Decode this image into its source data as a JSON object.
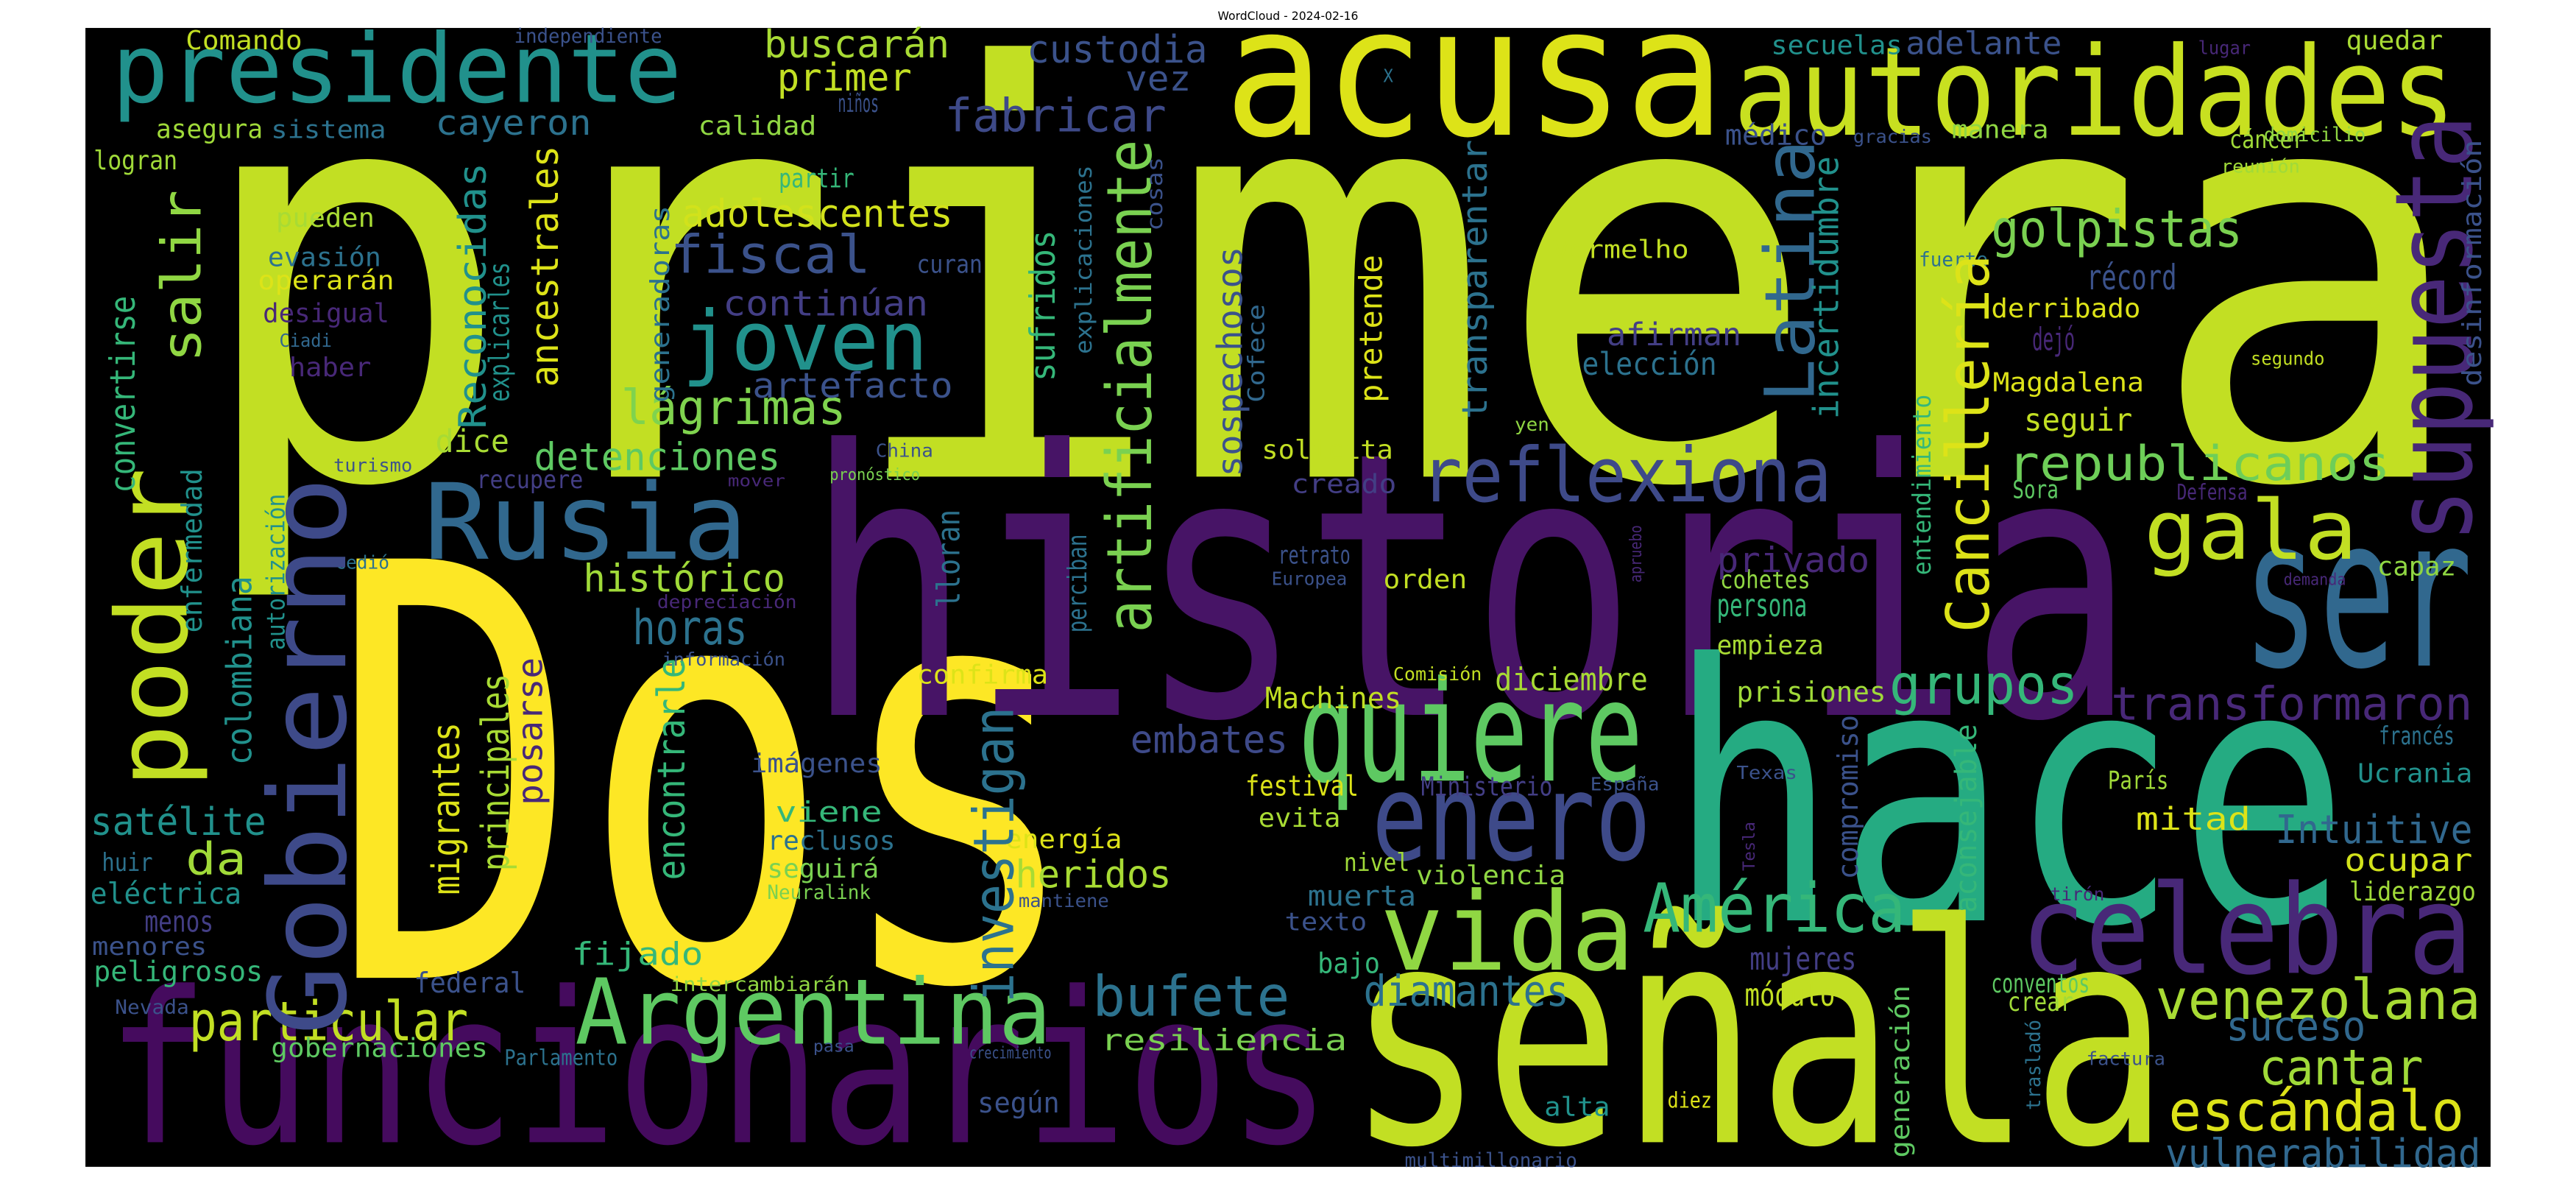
{
  "chart_data": {
    "type": "wordcloud",
    "title": "WordCloud - 2024-02-16",
    "background": "#000000",
    "words": [
      {
        "text": "primera",
        "color": "#c2df23"
      },
      {
        "text": "Dos",
        "color": "#fde725"
      },
      {
        "text": "historia",
        "color": "#471466"
      },
      {
        "text": "hace",
        "color": "#25ab82"
      },
      {
        "text": "señala",
        "color": "#c2df23"
      },
      {
        "text": "funcionarios",
        "color": "#450b5e"
      },
      {
        "text": "acusa",
        "color": "#dde318"
      },
      {
        "text": "autoridades",
        "color": "#c8e020"
      },
      {
        "text": "presidente",
        "color": "#21918c"
      },
      {
        "text": "ser",
        "color": "#31688e"
      },
      {
        "text": "quiere",
        "color": "#5ec962"
      },
      {
        "text": "enero",
        "color": "#3e4a89"
      },
      {
        "text": "vida",
        "color": "#90d743"
      },
      {
        "text": "celebra",
        "color": "#482878"
      },
      {
        "text": "Argentina",
        "color": "#5ec962"
      },
      {
        "text": "Rusia",
        "color": "#31688e"
      },
      {
        "text": "reflexiona",
        "color": "#3e4a89"
      },
      {
        "text": "gala",
        "color": "#c2df23"
      },
      {
        "text": "joven",
        "color": "#21918c"
      },
      {
        "text": "fiscal",
        "color": "#3b528b"
      },
      {
        "text": "América",
        "color": "#35b779"
      },
      {
        "text": "venezolana",
        "color": "#a8db34"
      },
      {
        "text": "escándalo",
        "color": "#dde318"
      },
      {
        "text": "cantar",
        "color": "#a0da39"
      },
      {
        "text": "suceso",
        "color": "#31688e"
      },
      {
        "text": "vulnerabilidad",
        "color": "#31688e"
      },
      {
        "text": "particular",
        "color": "#c2df23"
      },
      {
        "text": "bufete",
        "color": "#2c728e"
      },
      {
        "text": "diamantes",
        "color": "#2c728e"
      },
      {
        "text": "horas",
        "color": "#2c728e"
      },
      {
        "text": "grupos",
        "color": "#35b779"
      },
      {
        "text": "golpistas",
        "color": "#7ad151"
      },
      {
        "text": "republicanos",
        "color": "#6ece58"
      },
      {
        "text": "Intuitive",
        "color": "#31688e"
      },
      {
        "text": "transformaron",
        "color": "#482878"
      },
      {
        "text": "lágrimas",
        "color": "#7fd34e"
      },
      {
        "text": "detenciones",
        "color": "#5ec962"
      },
      {
        "text": "histórico",
        "color": "#a0da39"
      },
      {
        "text": "adolescentes",
        "color": "#d2e21b"
      },
      {
        "text": "continúan",
        "color": "#433e85"
      },
      {
        "text": "artefacto",
        "color": "#3b528b"
      },
      {
        "text": "buscarán",
        "color": "#a8db34"
      },
      {
        "text": "primer",
        "color": "#c2df23"
      },
      {
        "text": "custodia",
        "color": "#3b528b"
      },
      {
        "text": "vez",
        "color": "#3b528b"
      },
      {
        "text": "fabricar",
        "color": "#3e4a89"
      },
      {
        "text": "cayeron",
        "color": "#2c728e"
      },
      {
        "text": "asegura",
        "color": "#a0da39"
      },
      {
        "text": "sistema",
        "color": "#2c728e"
      },
      {
        "text": "Comando",
        "color": "#c2df23"
      },
      {
        "text": "independiente",
        "color": "#3b528b"
      },
      {
        "text": "calidad",
        "color": "#90d743"
      },
      {
        "text": "niños",
        "color": "#3b528b"
      },
      {
        "text": "logran",
        "color": "#a0da39"
      },
      {
        "text": "partir",
        "color": "#35b779"
      },
      {
        "text": "pueden",
        "color": "#a8db34"
      },
      {
        "text": "evasión",
        "color": "#2c728e"
      },
      {
        "text": "operarán",
        "color": "#dde318"
      },
      {
        "text": "desigual",
        "color": "#482878"
      },
      {
        "text": "Ciadi",
        "color": "#31688e"
      },
      {
        "text": "haber",
        "color": "#482878"
      },
      {
        "text": "curan",
        "color": "#3b528b"
      },
      {
        "text": "dice",
        "color": "#a8db34"
      },
      {
        "text": "recupere",
        "color": "#433e85"
      },
      {
        "text": "satélite",
        "color": "#21918c"
      },
      {
        "text": "da",
        "color": "#a0da39"
      },
      {
        "text": "eléctrica",
        "color": "#21918c"
      },
      {
        "text": "menos",
        "color": "#433e85"
      },
      {
        "text": "huir",
        "color": "#2c728e"
      },
      {
        "text": "menores",
        "color": "#3b528b"
      },
      {
        "text": "peligrosos",
        "color": "#35b779"
      },
      {
        "text": "federal",
        "color": "#3b528b"
      },
      {
        "text": "Nevada",
        "color": "#3b528b"
      },
      {
        "text": "gobernaciones",
        "color": "#5ec962"
      },
      {
        "text": "Parlamento",
        "color": "#2c728e"
      },
      {
        "text": "fijado",
        "color": "#35b779"
      },
      {
        "text": "intercambiarán",
        "color": "#90d743"
      },
      {
        "text": "imágenes",
        "color": "#3b528b"
      },
      {
        "text": "viene",
        "color": "#35b779"
      },
      {
        "text": "reclusos",
        "color": "#2c728e"
      },
      {
        "text": "seguirá",
        "color": "#7ad151"
      },
      {
        "text": "Neuralink",
        "color": "#7ad151"
      },
      {
        "text": "energía",
        "color": "#dde318"
      },
      {
        "text": "heridos",
        "color": "#a8db34"
      },
      {
        "text": "embates",
        "color": "#3e4a89"
      },
      {
        "text": "Machines",
        "color": "#c2df23"
      },
      {
        "text": "confirma",
        "color": "#dde318"
      },
      {
        "text": "diciembre",
        "color": "#a8db34"
      },
      {
        "text": "festival",
        "color": "#dde318"
      },
      {
        "text": "evita",
        "color": "#a8db34"
      },
      {
        "text": "muerta",
        "color": "#2c728e"
      },
      {
        "text": "texto",
        "color": "#3b528b"
      },
      {
        "text": "bajo",
        "color": "#35b779"
      },
      {
        "text": "nivel",
        "color": "#a0da39"
      },
      {
        "text": "Ministerio",
        "color": "#433e85"
      },
      {
        "text": "violencia",
        "color": "#90d743"
      },
      {
        "text": "Comisión",
        "color": "#c2df23"
      },
      {
        "text": "orden",
        "color": "#c2df23"
      },
      {
        "text": "retrato",
        "color": "#3b528b"
      },
      {
        "text": "Europea",
        "color": "#3b528b"
      },
      {
        "text": "creado",
        "color": "#433e85"
      },
      {
        "text": "solicita",
        "color": "#c2df23"
      },
      {
        "text": "resiliencia",
        "color": "#7ad151"
      },
      {
        "text": "según",
        "color": "#3b528b"
      },
      {
        "text": "alta",
        "color": "#21918c"
      },
      {
        "text": "diez",
        "color": "#dde318"
      },
      {
        "text": "multimillonario",
        "color": "#3b528b"
      },
      {
        "text": "mujeres",
        "color": "#433e85"
      },
      {
        "text": "módulo",
        "color": "#c2df23"
      },
      {
        "text": "prisiones",
        "color": "#a0da39"
      },
      {
        "text": "empieza",
        "color": "#a8db34"
      },
      {
        "text": "persona",
        "color": "#35b779"
      },
      {
        "text": "cohetes",
        "color": "#90d743"
      },
      {
        "text": "privado",
        "color": "#482878"
      },
      {
        "text": "Texas",
        "color": "#3b528b"
      },
      {
        "text": "mitad",
        "color": "#dde318"
      },
      {
        "text": "ocupar",
        "color": "#d2e21b"
      },
      {
        "text": "liderazgo",
        "color": "#a0da39"
      },
      {
        "text": "Ucrania",
        "color": "#21918c"
      },
      {
        "text": "francés",
        "color": "#2c728e"
      },
      {
        "text": "París",
        "color": "#a0da39"
      },
      {
        "text": "capaz",
        "color": "#90d743"
      },
      {
        "text": "demanda",
        "color": "#482878"
      },
      {
        "text": "Defensa",
        "color": "#482878"
      },
      {
        "text": "Sora",
        "color": "#5ec962"
      },
      {
        "text": "seguir",
        "color": "#c2df23"
      },
      {
        "text": "Magdalena",
        "color": "#dde318"
      },
      {
        "text": "dejó",
        "color": "#482878"
      },
      {
        "text": "derribado",
        "color": "#dde318"
      },
      {
        "text": "récord",
        "color": "#3b528b"
      },
      {
        "text": "fuerte",
        "color": "#2c728e"
      },
      {
        "text": "cáncer",
        "color": "#a0da39"
      },
      {
        "text": "reunión",
        "color": "#a0da39"
      },
      {
        "text": "domicilio",
        "color": "#90d743"
      },
      {
        "text": "quedar",
        "color": "#a8db34"
      },
      {
        "text": "lugar",
        "color": "#482878"
      },
      {
        "text": "adelante",
        "color": "#3b528b"
      },
      {
        "text": "secuelas",
        "color": "#21918c"
      },
      {
        "text": "manera",
        "color": "#90d743"
      },
      {
        "text": "gracias",
        "color": "#3b528b"
      },
      {
        "text": "médico",
        "color": "#3b528b"
      },
      {
        "text": "X",
        "color": "#2c728e"
      },
      {
        "text": "Vermelho",
        "color": "#c2df23"
      },
      {
        "text": "afirman",
        "color": "#433e85"
      },
      {
        "text": "elección",
        "color": "#2c728e"
      },
      {
        "text": "segundo",
        "color": "#c2df23"
      },
      {
        "text": "yen",
        "color": "#90d743"
      },
      {
        "text": "China",
        "color": "#3b528b"
      },
      {
        "text": "turismo",
        "color": "#3b528b"
      },
      {
        "text": "mover",
        "color": "#482878"
      },
      {
        "text": "pronóstico",
        "color": "#7ad151"
      },
      {
        "text": "cedió",
        "color": "#2c728e"
      },
      {
        "text": "depreciación",
        "color": "#482878"
      },
      {
        "text": "información",
        "color": "#3b528b"
      },
      {
        "text": "España",
        "color": "#3b528b"
      },
      {
        "text": "mantiene",
        "color": "#3b528b"
      },
      {
        "text": "pasa",
        "color": "#3b528b"
      },
      {
        "text": "crecimiento",
        "color": "#3b528b"
      },
      {
        "text": "conventos",
        "color": "#5ec962"
      },
      {
        "text": "crear",
        "color": "#a0da39"
      },
      {
        "text": "factura",
        "color": "#3b528b"
      },
      {
        "text": "tirón",
        "color": "#482878"
      },
      {
        "text": "Gobierno",
        "color": "#3e4a89"
      },
      {
        "text": "poder",
        "color": "#c2df23"
      },
      {
        "text": "supuesta",
        "color": "#482878"
      },
      {
        "text": "artificialmente",
        "color": "#7ad151"
      },
      {
        "text": "Latina",
        "color": "#31688e"
      },
      {
        "text": "Cancillería",
        "color": "#dde318"
      },
      {
        "text": "investigan",
        "color": "#2c728e"
      },
      {
        "text": "salir",
        "color": "#90d743"
      },
      {
        "text": "convertirse",
        "color": "#35b779"
      },
      {
        "text": "Reconocidas",
        "color": "#21918c"
      },
      {
        "text": "explicarles",
        "color": "#21918c"
      },
      {
        "text": "ancestrales",
        "color": "#dde318"
      },
      {
        "text": "generadoras",
        "color": "#2c728e"
      },
      {
        "text": "sufridos",
        "color": "#35b779"
      },
      {
        "text": "explicaciones",
        "color": "#2c728e"
      },
      {
        "text": "cosas",
        "color": "#3b528b"
      },
      {
        "text": "sospechosos",
        "color": "#3b528b"
      },
      {
        "text": "Cofece",
        "color": "#31688e"
      },
      {
        "text": "pretende",
        "color": "#dde318"
      },
      {
        "text": "transparentar",
        "color": "#2c728e"
      },
      {
        "text": "incertidumbre",
        "color": "#21918c"
      },
      {
        "text": "desinformación",
        "color": "#3b528b"
      },
      {
        "text": "entendimiento",
        "color": "#35b779"
      },
      {
        "text": "lloran",
        "color": "#2c728e"
      },
      {
        "text": "perciban",
        "color": "#2c728e"
      },
      {
        "text": "enfermedad",
        "color": "#21918c"
      },
      {
        "text": "autorización",
        "color": "#21918c"
      },
      {
        "text": "colombiana",
        "color": "#21918c"
      },
      {
        "text": "migrantes",
        "color": "#dde318"
      },
      {
        "text": "principales",
        "color": "#a8db34"
      },
      {
        "text": "posarse",
        "color": "#482878"
      },
      {
        "text": "encontrarle",
        "color": "#35b779"
      },
      {
        "text": "apruebo",
        "color": "#482878"
      },
      {
        "text": "compromiso",
        "color": "#3b528b"
      },
      {
        "text": "aconsejable",
        "color": "#35b779"
      },
      {
        "text": "Tesla",
        "color": "#482878"
      },
      {
        "text": "generación",
        "color": "#5ec962"
      },
      {
        "text": "trasladó",
        "color": "#2c728e"
      }
    ]
  }
}
